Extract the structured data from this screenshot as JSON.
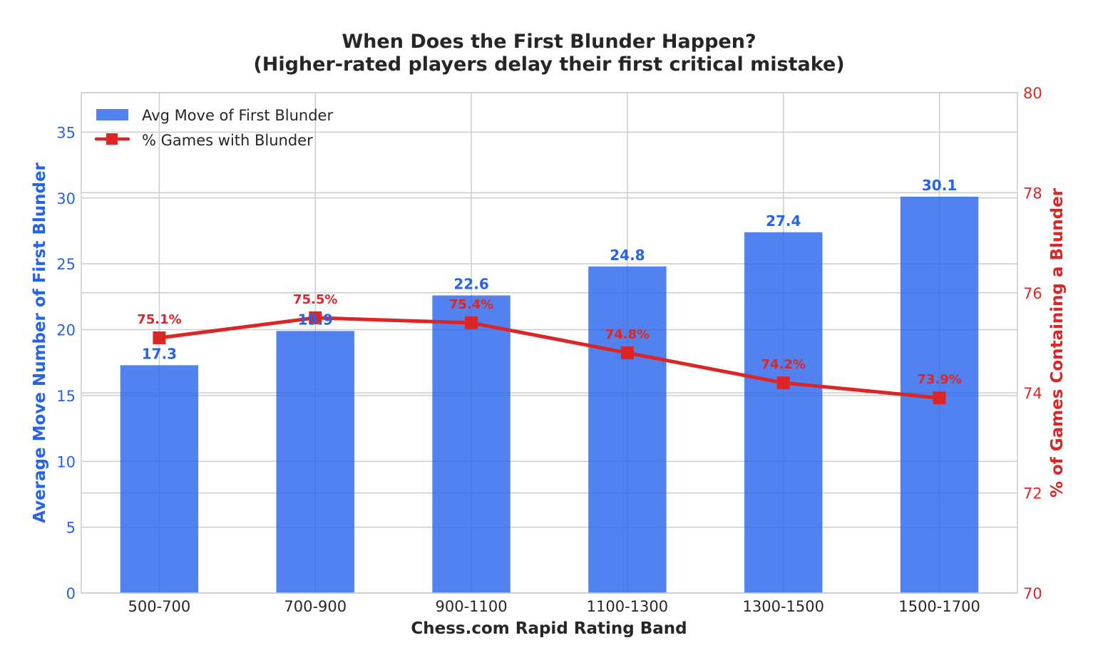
{
  "chart_data": {
    "type": "bar",
    "title_line1": "When Does the First Blunder Happen?",
    "title_line2": "(Higher-rated players delay their first critical mistake)",
    "xlabel": "Chess.com Rapid Rating Band",
    "ylabel_left": "Average Move Number of First Blunder",
    "ylabel_right": "% of Games Containing a Blunder",
    "categories": [
      "500-700",
      "700-900",
      "900-1100",
      "1100-1300",
      "1300-1500",
      "1500-1700"
    ],
    "y_left_range": [
      0,
      38
    ],
    "y_left_ticks": [
      0,
      5,
      10,
      15,
      20,
      25,
      30,
      35
    ],
    "y_right_range": [
      70,
      80
    ],
    "y_right_ticks": [
      70,
      72,
      74,
      76,
      78,
      80
    ],
    "grid": true,
    "legend_position": "top-left",
    "series": [
      {
        "name": "Avg Move of First Blunder",
        "type": "bar",
        "axis": "left",
        "color": "#2563eb",
        "values": [
          17.3,
          19.9,
          22.6,
          24.8,
          27.4,
          30.1
        ],
        "labels": [
          "17.3",
          "19.9",
          "22.6",
          "24.8",
          "27.4",
          "30.1"
        ]
      },
      {
        "name": "% Games with Blunder",
        "type": "line",
        "axis": "right",
        "color": "#dc2626",
        "marker": "square",
        "values": [
          75.1,
          75.5,
          75.4,
          74.8,
          74.2,
          73.9
        ],
        "labels": [
          "75.1%",
          "75.5%",
          "75.4%",
          "74.8%",
          "74.2%",
          "73.9%"
        ]
      }
    ]
  }
}
